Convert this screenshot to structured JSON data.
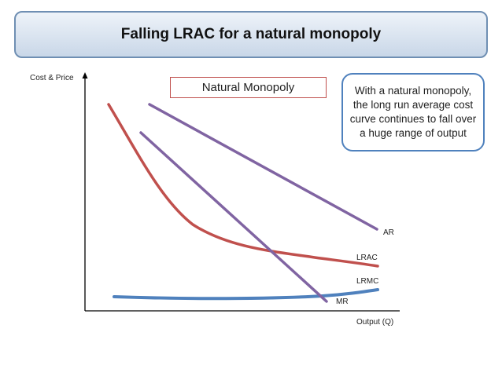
{
  "title": "Falling LRAC for a natural monopoly",
  "label_box": "Natural Monopoly",
  "note": "With a natural monopoly, the long run average cost curve continues to fall over a huge range of output",
  "axes": {
    "y_label": "Cost & Price",
    "x_label": "Output (Q)"
  },
  "curves": {
    "ar": "AR",
    "lrac": "LRAC",
    "lrmc": "LRMC",
    "mr": "MR"
  },
  "colors": {
    "lrac": "#c0504d",
    "demand": "#8064a2",
    "lrmc": "#4f81bd",
    "banner_border": "#6f8fb3"
  }
}
